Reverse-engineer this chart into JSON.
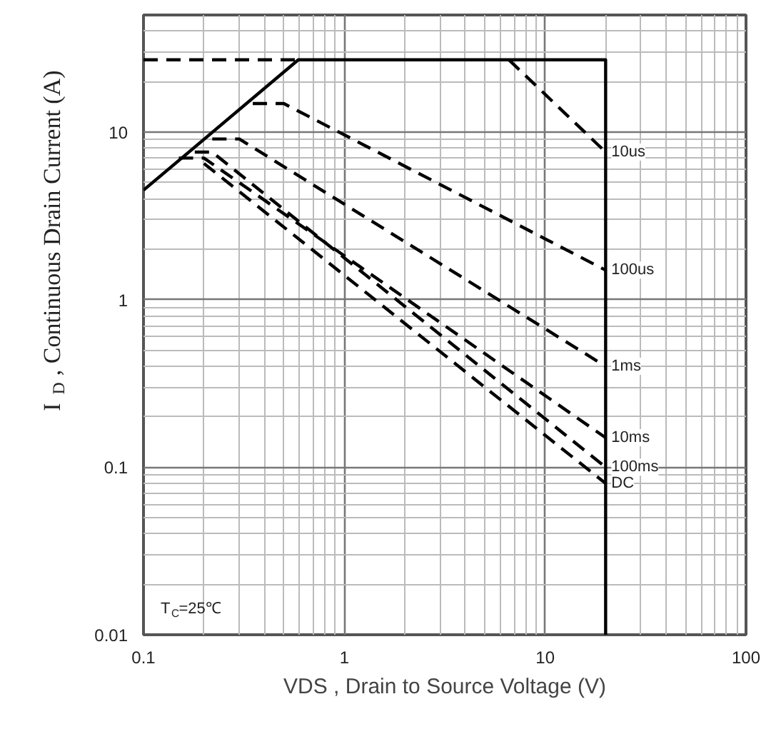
{
  "chart_data": {
    "type": "line",
    "xlabel": "VDS , Drain to Source Voltage (V)",
    "ylabel": "I$_{D}$ , Continuous Drain Current (A)",
    "log": "xy",
    "grid": true,
    "legend": false,
    "xlim": [
      0.1,
      100
    ],
    "xticks": [
      0.1,
      1,
      10,
      100
    ],
    "ylim": [
      0.01,
      50
    ],
    "yticks": [
      0.01,
      0.1,
      1,
      10
    ],
    "annotations": [
      "T$_{C}$=25℃"
    ],
    "series": [
      {
        "color": "#000000",
        "line_style": "solid",
        "x": [
          0.1,
          0.59,
          20,
          20
        ],
        "values": [
          4.5,
          27,
          27,
          0.01
        ]
      },
      {
        "color": "#000000",
        "line_style": "dashed",
        "x": [
          0.1,
          0.59
        ],
        "values": [
          27,
          27
        ]
      },
      {
        "name": "10us",
        "color": "#000000",
        "line_style": "dashed",
        "x": [
          6.6,
          20
        ],
        "values": [
          27,
          7.6
        ]
      },
      {
        "name": "100us",
        "color": "#000000",
        "line_style": "dashed",
        "x": [
          0.35,
          0.5,
          20
        ],
        "values": [
          14.8,
          14.8,
          1.5
        ]
      },
      {
        "name": "1ms",
        "color": "#000000",
        "line_style": "dashed",
        "x": [
          0.22,
          0.3,
          20
        ],
        "values": [
          9.1,
          9.1,
          0.4
        ]
      },
      {
        "name": "10ms",
        "color": "#000000",
        "line_style": "dashed",
        "x": [
          0.15,
          0.2,
          20
        ],
        "values": [
          7.0,
          7.0,
          0.15
        ]
      },
      {
        "name": "100ms",
        "color": "#000000",
        "line_style": "dashed",
        "x": [
          0.18,
          0.22,
          20
        ],
        "values": [
          7.6,
          7.6,
          0.1
        ]
      },
      {
        "name": "DC",
        "color": "#000000",
        "line_style": "dashed",
        "x": [
          0.2,
          20
        ],
        "values": [
          6.5,
          0.08
        ]
      }
    ]
  }
}
